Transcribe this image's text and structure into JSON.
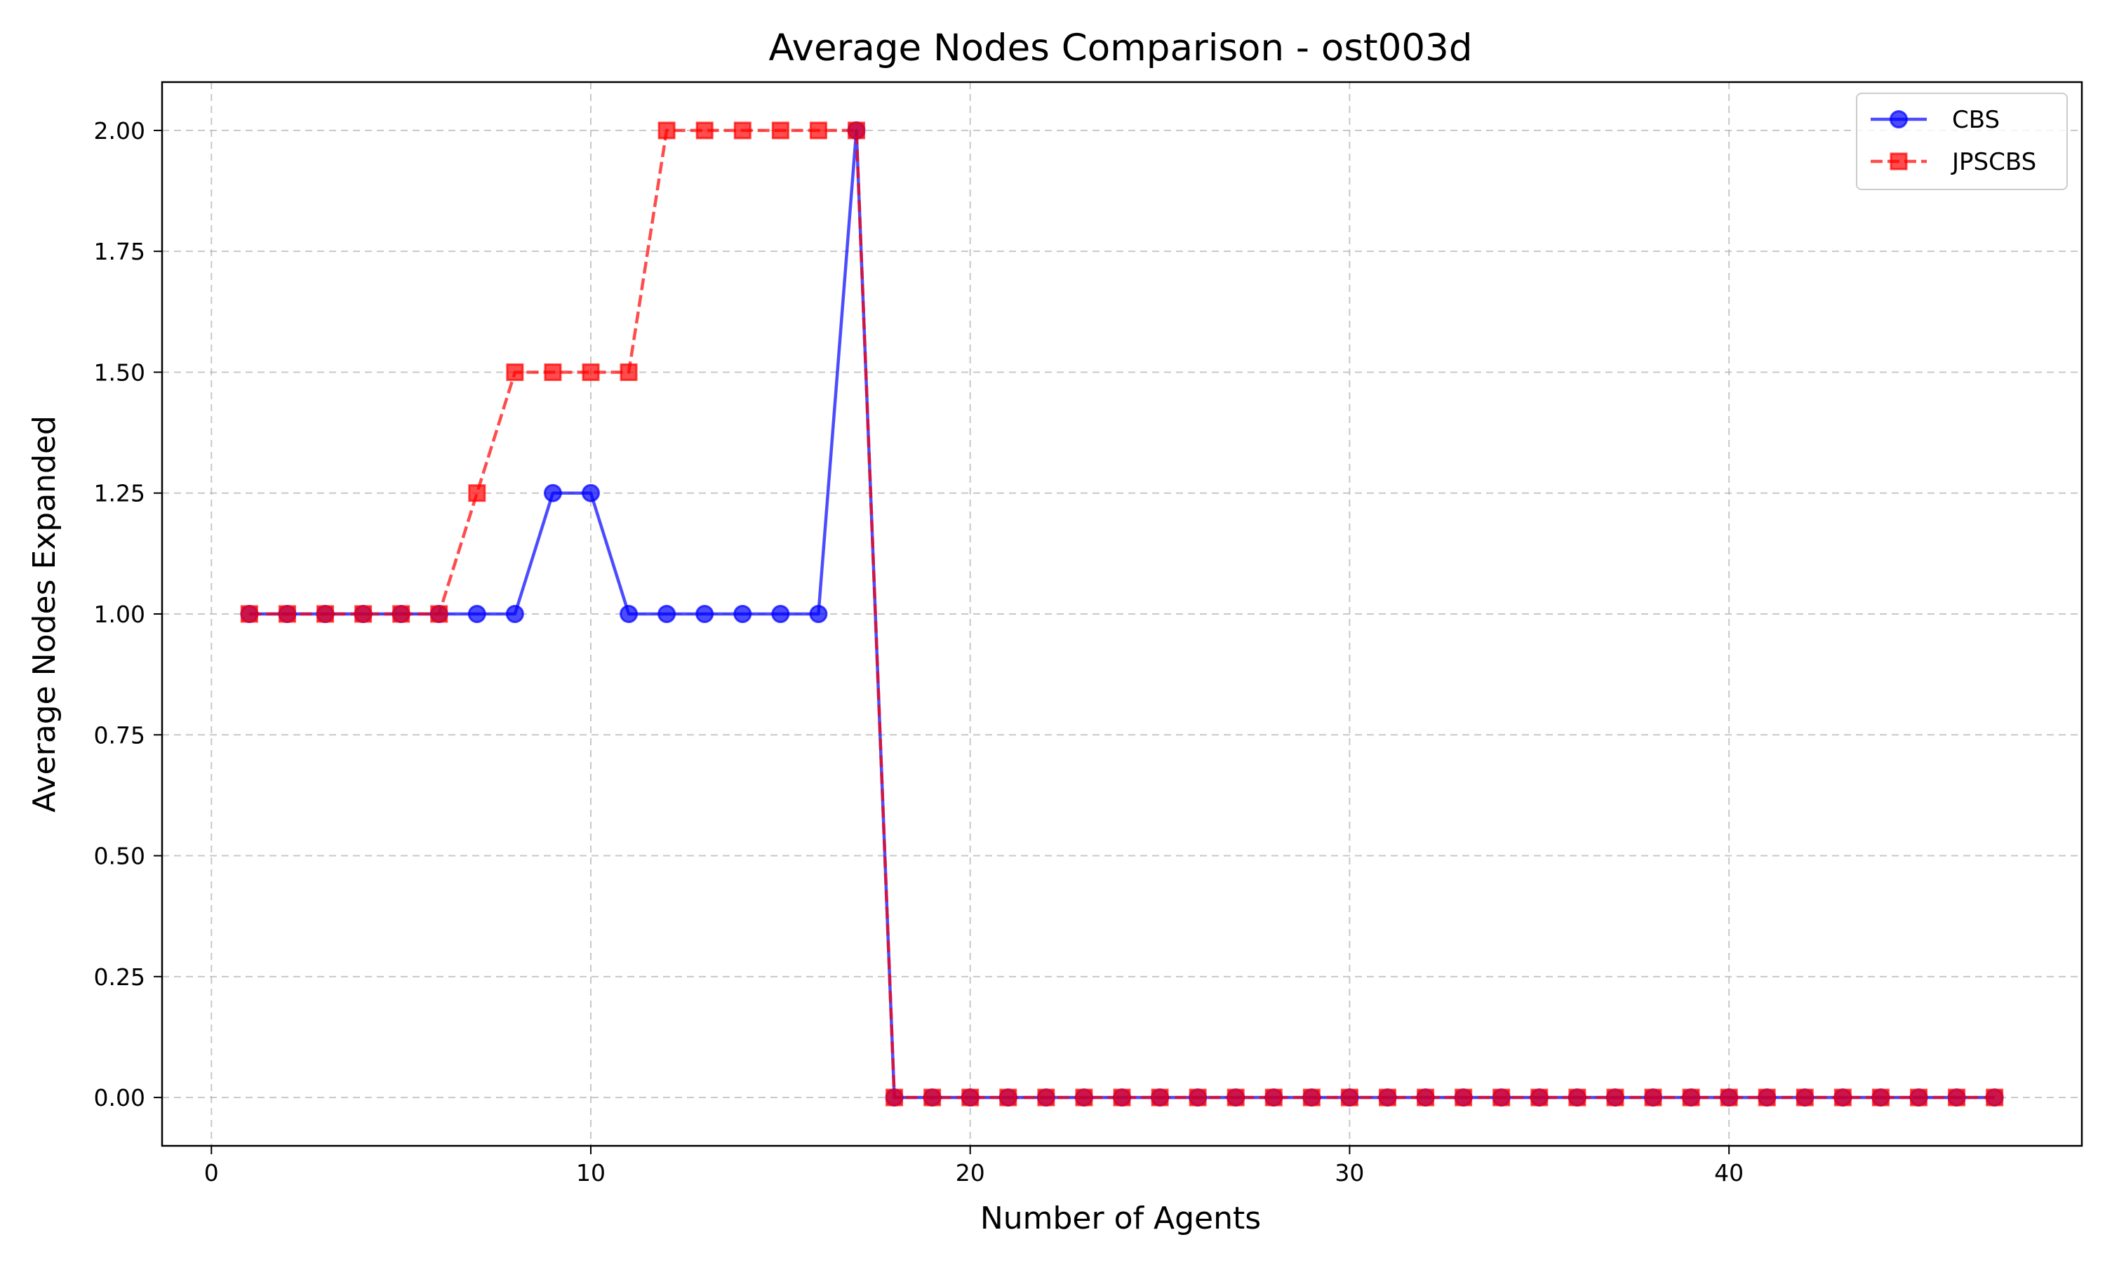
{
  "chart_data": {
    "type": "line",
    "title": "Average Nodes Comparison - ost003d",
    "xlabel": "Number of Agents",
    "ylabel": "Average Nodes Expanded",
    "xlim": [
      -1.3,
      49.3
    ],
    "ylim": [
      -0.1,
      2.1
    ],
    "xticks": [
      0,
      10,
      20,
      30,
      40
    ],
    "xtick_labels": [
      "0",
      "10",
      "20",
      "30",
      "40"
    ],
    "yticks": [
      0,
      0.25,
      0.5,
      0.75,
      1.0,
      1.25,
      1.5,
      1.75,
      2.0
    ],
    "ytick_labels": [
      "0.00",
      "0.25",
      "0.50",
      "0.75",
      "1.00",
      "1.25",
      "1.50",
      "1.75",
      "2.00"
    ],
    "grid": true,
    "legend_position": "top-right",
    "x": [
      1,
      2,
      3,
      4,
      5,
      6,
      7,
      8,
      9,
      10,
      11,
      12,
      13,
      14,
      15,
      16,
      17,
      18,
      19,
      20,
      21,
      22,
      23,
      24,
      25,
      26,
      27,
      28,
      29,
      30,
      31,
      32,
      33,
      34,
      35,
      36,
      37,
      38,
      39,
      40,
      41,
      42,
      43,
      44,
      45,
      46,
      47
    ],
    "series": [
      {
        "name": "CBS",
        "color": "#0000ff",
        "marker": "circle",
        "line_style": "solid",
        "values": [
          1,
          1,
          1,
          1,
          1,
          1,
          1,
          1,
          1.25,
          1.25,
          1,
          1,
          1,
          1,
          1,
          1,
          2,
          0,
          0,
          0,
          0,
          0,
          0,
          0,
          0,
          0,
          0,
          0,
          0,
          0,
          0,
          0,
          0,
          0,
          0,
          0,
          0,
          0,
          0,
          0,
          0,
          0,
          0,
          0,
          0,
          0,
          0
        ]
      },
      {
        "name": "JPSCBS",
        "color": "#ff0000",
        "marker": "square",
        "line_style": "dashed",
        "values": [
          1,
          1,
          1,
          1,
          1,
          1,
          1.25,
          1.5,
          1.5,
          1.5,
          1.5,
          2,
          2,
          2,
          2,
          2,
          2,
          0,
          0,
          0,
          0,
          0,
          0,
          0,
          0,
          0,
          0,
          0,
          0,
          0,
          0,
          0,
          0,
          0,
          0,
          0,
          0,
          0,
          0,
          0,
          0,
          0,
          0,
          0,
          0,
          0,
          0
        ]
      }
    ]
  }
}
